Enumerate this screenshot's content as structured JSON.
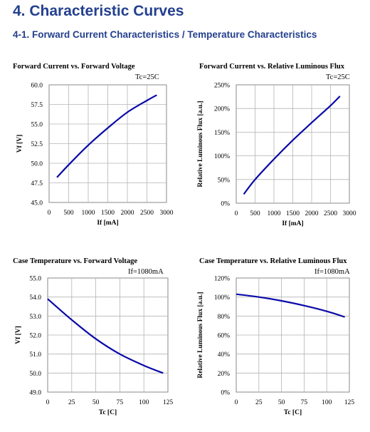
{
  "page": {
    "heading": "4. Characteristic Curves",
    "subheading": "4-1. Forward Current Characteristics / Temperature Characteristics"
  },
  "chart_data": [
    {
      "type": "line",
      "title": "Forward Current vs. Forward Voltage",
      "condition": "Tc=25C",
      "xlabel": "If [mA]",
      "ylabel": "Vf [V]",
      "xlim": [
        0,
        3000
      ],
      "ylim": [
        45.0,
        60.0
      ],
      "xticks": [
        "0",
        "500",
        "1000",
        "1500",
        "2000",
        "2500",
        "3000"
      ],
      "yticks": [
        "45.0",
        "47.5",
        "50.0",
        "52.5",
        "55.0",
        "57.5",
        "60.0"
      ],
      "grid": true,
      "series": [
        {
          "color": "#0a0aa8",
          "x": [
            200,
            500,
            1000,
            1500,
            2000,
            2500,
            2750
          ],
          "y": [
            48.2,
            49.8,
            52.3,
            54.5,
            56.5,
            58.0,
            58.7
          ]
        }
      ]
    },
    {
      "type": "line",
      "title": "Forward Current vs. Relative Luminous Flux",
      "condition": "Tc=25C",
      "xlabel": "If [mA]",
      "ylabel": "Relative Luminous Flux [a.u.]",
      "xlim": [
        0,
        3000
      ],
      "ylim": [
        0,
        250
      ],
      "xticks": [
        "0",
        "500",
        "1000",
        "1500",
        "2000",
        "2500",
        "3000"
      ],
      "yticks": [
        "0%",
        "50%",
        "100%",
        "150%",
        "200%",
        "250%"
      ],
      "grid": true,
      "series": [
        {
          "color": "#0a0aa8",
          "x": [
            200,
            500,
            1000,
            1500,
            2000,
            2500,
            2750
          ],
          "y": [
            19,
            50,
            93,
            133,
            170,
            206,
            226
          ]
        }
      ]
    },
    {
      "type": "line",
      "title": "Case Temperature vs. Forward Voltage",
      "condition": "If=1080mA",
      "xlabel": "Tc [C]",
      "ylabel": "Vf [V]",
      "xlim": [
        0,
        125
      ],
      "ylim": [
        49.0,
        55.0
      ],
      "xticks": [
        "0",
        "25",
        "50",
        "75",
        "100",
        "125"
      ],
      "yticks": [
        "49.0",
        "50.0",
        "51.0",
        "52.0",
        "53.0",
        "54.0",
        "55.0"
      ],
      "grid": true,
      "series": [
        {
          "color": "#0a0aa8",
          "x": [
            0,
            25,
            50,
            75,
            100,
            120
          ],
          "y": [
            53.9,
            52.8,
            51.8,
            51.0,
            50.4,
            50.0
          ]
        }
      ]
    },
    {
      "type": "line",
      "title": "Case Temperature vs. Relative Luminous Flux",
      "condition": "If=1080mA",
      "xlabel": "Tc [C]",
      "ylabel": "Relative Luminous Flux [a.u.]",
      "xlim": [
        0,
        125
      ],
      "ylim": [
        0,
        120
      ],
      "xticks": [
        "0",
        "25",
        "50",
        "75",
        "100",
        "125"
      ],
      "yticks": [
        "0%",
        "20%",
        "40%",
        "60%",
        "80%",
        "100%",
        "120%"
      ],
      "grid": true,
      "series": [
        {
          "color": "#0a0aa8",
          "x": [
            0,
            25,
            50,
            75,
            100,
            120
          ],
          "y": [
            103,
            100,
            96,
            91,
            85,
            79
          ]
        }
      ]
    }
  ]
}
